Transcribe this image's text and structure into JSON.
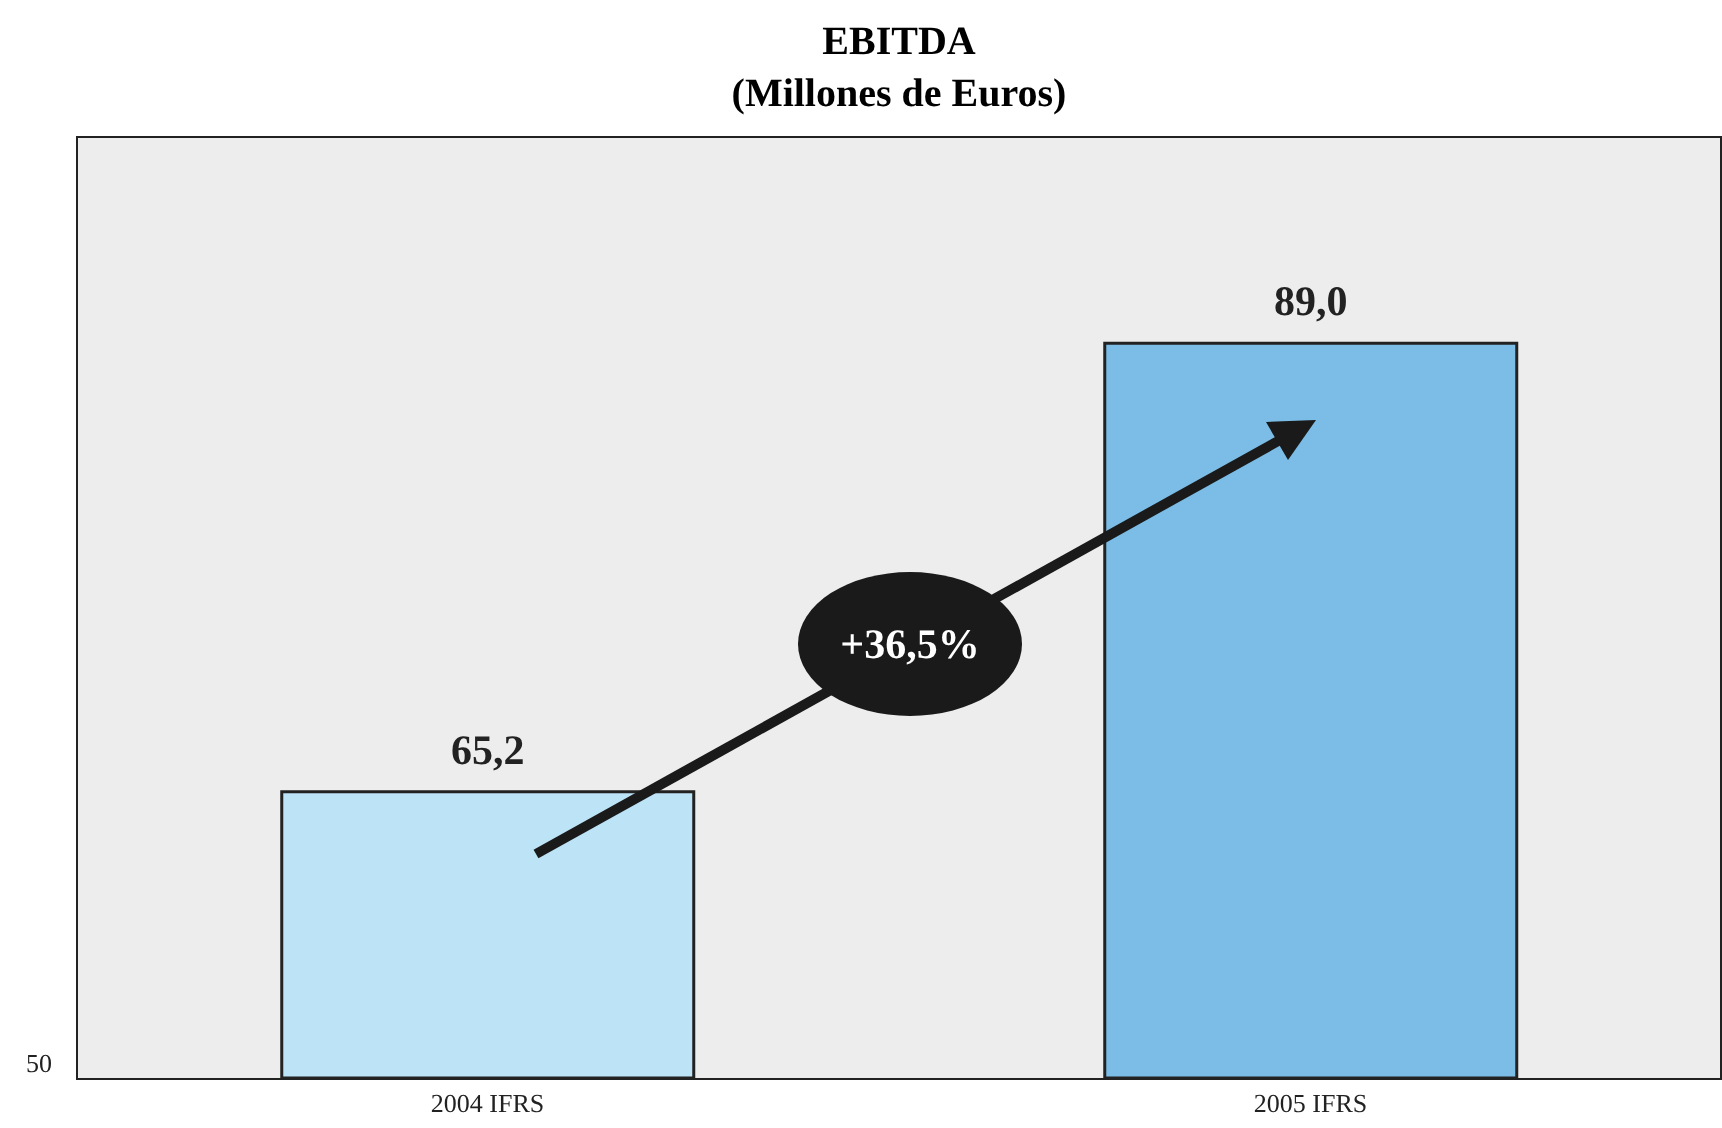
{
  "chart_data": {
    "type": "bar",
    "title": "EBITDA\n(Millones de Euros)",
    "categories": [
      "2004 IFRS",
      "2005 IFRS"
    ],
    "values": [
      65.2,
      89.0
    ],
    "colors": [
      "#bde3f7",
      "#7bbde6"
    ],
    "value_labels": [
      "65,2",
      "89,0"
    ],
    "ylim": [
      50,
      100
    ],
    "annotations": [
      "+36,5%",
      "50"
    ]
  }
}
